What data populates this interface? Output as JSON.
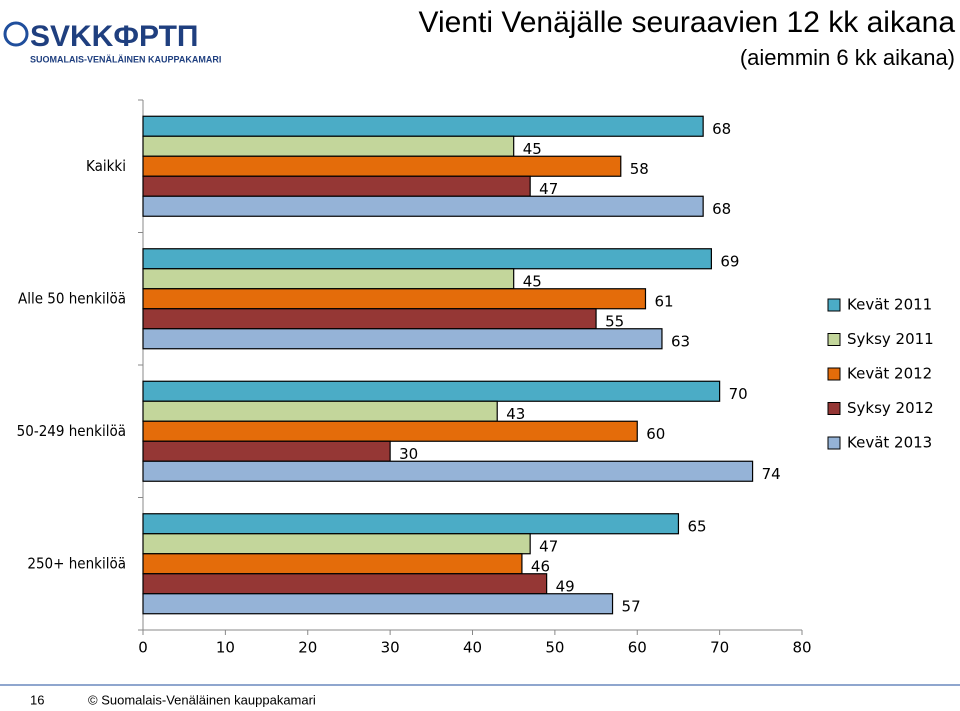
{
  "logo": {
    "name": "SVKKФРТП",
    "subtitle": "SUOMALAIS-VENÄLÄINEN KAUPPAKAMARI"
  },
  "footer": {
    "page": "16",
    "copyright": "© Suomalais-Venäläinen kauppakamari"
  },
  "chart_data": {
    "type": "bar",
    "orientation": "horizontal",
    "title": "Vienti Venäjälle seuraavien 12 kk aikana",
    "subtitle": "(aiemmin 6 kk aikana)",
    "categories": [
      "Kaikki",
      "Alle 50 henkilöä",
      "50-249 henkilöä",
      "250+ henkilöä"
    ],
    "series": [
      {
        "name": "Kevät 2011",
        "color": "#4bacc6",
        "values": [
          68,
          69,
          70,
          65
        ]
      },
      {
        "name": "Syksy 2011",
        "color": "#c3d69b",
        "values": [
          45,
          45,
          43,
          47
        ]
      },
      {
        "name": "Kevät 2012",
        "color": "#e46c0a",
        "values": [
          58,
          61,
          60,
          46
        ]
      },
      {
        "name": "Syksy 2012",
        "color": "#953735",
        "values": [
          47,
          55,
          30,
          49
        ]
      },
      {
        "name": "Kevät 2013",
        "color": "#95b3d7",
        "values": [
          68,
          63,
          74,
          57
        ]
      }
    ],
    "xlim": [
      0,
      80
    ],
    "xticks": [
      0,
      10,
      20,
      30,
      40,
      50,
      60,
      70,
      80
    ],
    "grid": false,
    "legend": "right"
  }
}
